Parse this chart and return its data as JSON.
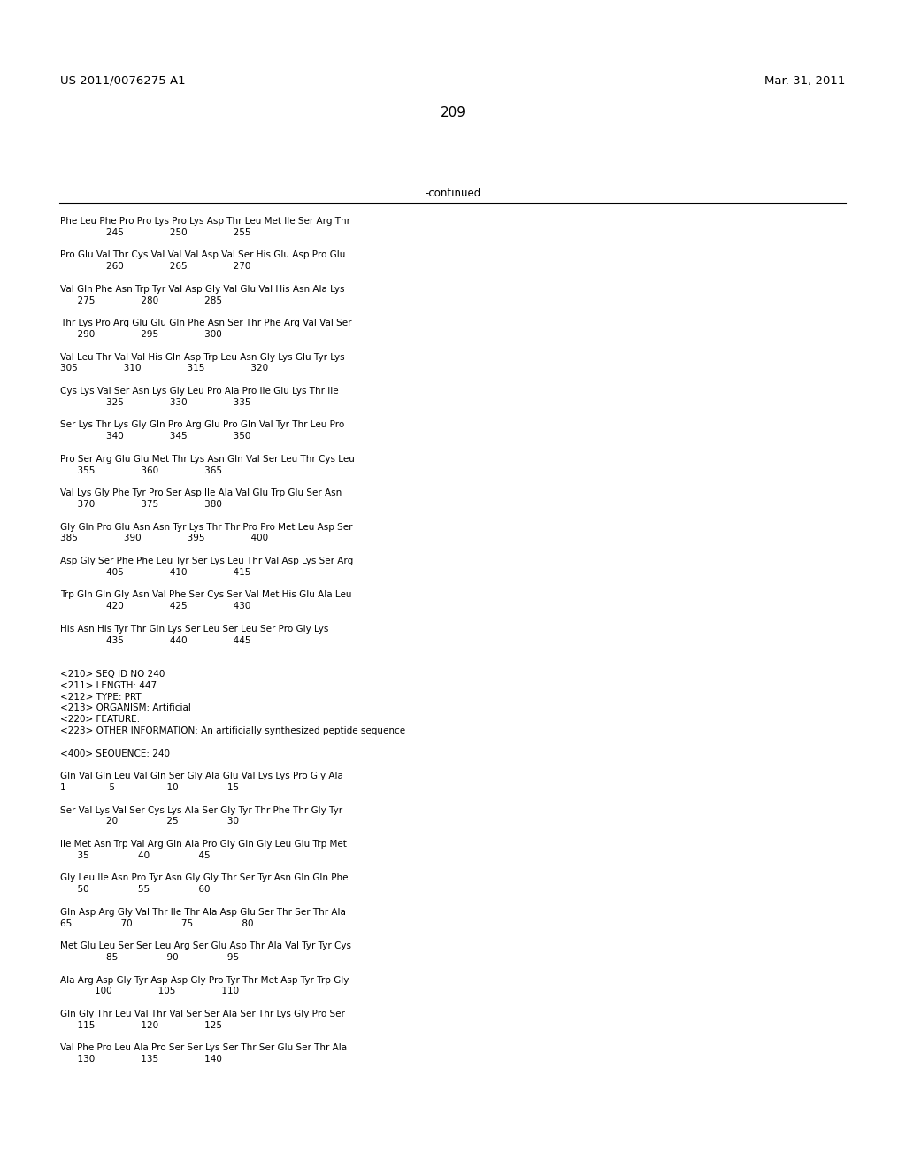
{
  "header_left": "US 2011/0076275 A1",
  "header_right": "Mar. 31, 2011",
  "page_number": "209",
  "continued_label": "-continued",
  "bg_color": "#ffffff",
  "text_color": "#000000",
  "font_size": 7.5,
  "mono_font": "Courier New",
  "header_font": "DejaVu Sans",
  "content_lines": [
    "Phe Leu Phe Pro Pro Lys Pro Lys Asp Thr Leu Met Ile Ser Arg Thr",
    "                245                250                255",
    "",
    "Pro Glu Val Thr Cys Val Val Val Asp Val Ser His Glu Asp Pro Glu",
    "                260                265                270",
    "",
    "Val Gln Phe Asn Trp Tyr Val Asp Gly Val Glu Val His Asn Ala Lys",
    "      275                280                285",
    "",
    "Thr Lys Pro Arg Glu Glu Gln Phe Asn Ser Thr Phe Arg Val Val Ser",
    "      290                295                300",
    "",
    "Val Leu Thr Val Val His Gln Asp Trp Leu Asn Gly Lys Glu Tyr Lys",
    "305                310                315                320",
    "",
    "Cys Lys Val Ser Asn Lys Gly Leu Pro Ala Pro Ile Glu Lys Thr Ile",
    "                325                330                335",
    "",
    "Ser Lys Thr Lys Gly Gln Pro Arg Glu Pro Gln Val Tyr Thr Leu Pro",
    "                340                345                350",
    "",
    "Pro Ser Arg Glu Glu Met Thr Lys Asn Gln Val Ser Leu Thr Cys Leu",
    "      355                360                365",
    "",
    "Val Lys Gly Phe Tyr Pro Ser Asp Ile Ala Val Glu Trp Glu Ser Asn",
    "      370                375                380",
    "",
    "Gly Gln Pro Glu Asn Asn Tyr Lys Thr Thr Pro Pro Met Leu Asp Ser",
    "385                390                395                400",
    "",
    "Asp Gly Ser Phe Phe Leu Tyr Ser Lys Leu Thr Val Asp Lys Ser Arg",
    "                405                410                415",
    "",
    "Trp Gln Gln Gly Asn Val Phe Ser Cys Ser Val Met His Glu Ala Leu",
    "                420                425                430",
    "",
    "His Asn His Tyr Thr Gln Lys Ser Leu Ser Leu Ser Pro Gly Lys",
    "                435                440                445",
    "",
    "",
    "<210> SEQ ID NO 240",
    "<211> LENGTH: 447",
    "<212> TYPE: PRT",
    "<213> ORGANISM: Artificial",
    "<220> FEATURE:",
    "<223> OTHER INFORMATION: An artificially synthesized peptide sequence",
    "",
    "<400> SEQUENCE: 240",
    "",
    "Gln Val Gln Leu Val Gln Ser Gly Ala Glu Val Lys Lys Pro Gly Ala",
    "1               5                  10                 15",
    "",
    "Ser Val Lys Val Ser Cys Lys Ala Ser Gly Tyr Thr Phe Thr Gly Tyr",
    "                20                 25                 30",
    "",
    "Ile Met Asn Trp Val Arg Gln Ala Pro Gly Gln Gly Leu Glu Trp Met",
    "      35                 40                 45",
    "",
    "Gly Leu Ile Asn Pro Tyr Asn Gly Gly Thr Ser Tyr Asn Gln Gln Phe",
    "      50                 55                 60",
    "",
    "Gln Asp Arg Gly Val Thr Ile Thr Ala Asp Glu Ser Thr Ser Thr Ala",
    "65                 70                 75                 80",
    "",
    "Met Glu Leu Ser Ser Leu Arg Ser Glu Asp Thr Ala Val Tyr Tyr Cys",
    "                85                 90                 95",
    "",
    "Ala Arg Asp Gly Tyr Asp Asp Gly Pro Tyr Thr Met Asp Tyr Trp Gly",
    "            100                105                110",
    "",
    "Gln Gly Thr Leu Val Thr Val Ser Ser Ala Ser Thr Lys Gly Pro Ser",
    "      115                120                125",
    "",
    "Val Phe Pro Leu Ala Pro Ser Ser Lys Ser Thr Ser Glu Ser Thr Ala",
    "      130                135                140"
  ]
}
